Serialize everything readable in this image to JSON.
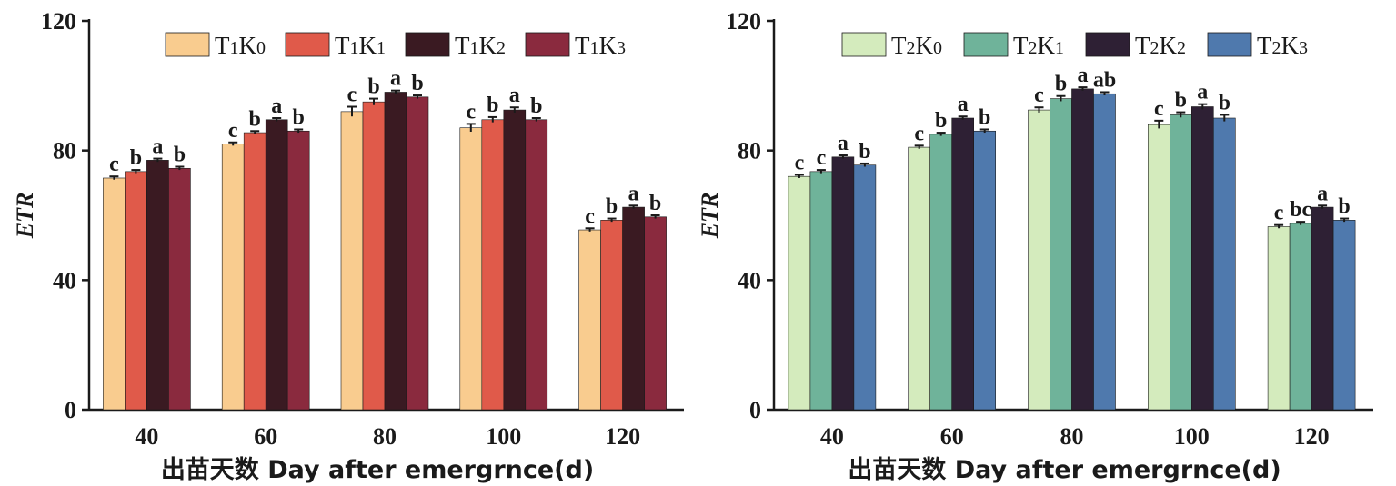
{
  "chart_data": [
    {
      "type": "bar",
      "categories": [
        "40",
        "60",
        "80",
        "100",
        "120"
      ],
      "ylabel": "ETR",
      "xlabel": "出苗天数 Day after emergrnce(d)",
      "ylim": [
        0,
        120
      ],
      "yticks": [
        "0",
        "40",
        "80",
        "120"
      ],
      "legend_position": "top",
      "series": [
        {
          "name": "T1K0",
          "color": "#f9cc8f",
          "values": [
            71.5,
            82,
            92,
            87,
            55.5
          ],
          "errors": [
            0.5,
            0.5,
            1.5,
            1.2,
            0.5
          ],
          "labels": [
            "c",
            "c",
            "c",
            "c",
            "c"
          ]
        },
        {
          "name": "T1K1",
          "color": "#e05a4a",
          "values": [
            73.5,
            85.5,
            95,
            89.5,
            58.5
          ],
          "errors": [
            0.5,
            0.5,
            1,
            0.8,
            0.5
          ],
          "labels": [
            "b",
            "b",
            "b",
            "b",
            "b"
          ]
        },
        {
          "name": "T1K2",
          "color": "#3a1a22",
          "values": [
            77,
            89.5,
            98,
            92.5,
            62.5
          ],
          "errors": [
            0.5,
            0.5,
            0.5,
            0.8,
            0.5
          ],
          "labels": [
            "a",
            "a",
            "a",
            "a",
            "a"
          ]
        },
        {
          "name": "T1K3",
          "color": "#8a2a3e",
          "values": [
            74.5,
            86,
            96.5,
            89.5,
            59.5
          ],
          "errors": [
            0.5,
            0.5,
            0.5,
            0.5,
            0.5
          ],
          "labels": [
            "b",
            "b",
            "b",
            "b",
            "b"
          ]
        }
      ]
    },
    {
      "type": "bar",
      "categories": [
        "40",
        "60",
        "80",
        "100",
        "120"
      ],
      "ylabel": "ETR",
      "xlabel": "出苗天数 Day after emergrnce(d)",
      "ylim": [
        0,
        120
      ],
      "yticks": [
        "0",
        "40",
        "80",
        "120"
      ],
      "legend_position": "top",
      "series": [
        {
          "name": "T2K0",
          "color": "#d4ebbd",
          "values": [
            72,
            81,
            92.5,
            88,
            56.5
          ],
          "errors": [
            0.5,
            0.5,
            0.8,
            1.2,
            0.5
          ],
          "labels": [
            "c",
            "c",
            "c",
            "c",
            "c"
          ]
        },
        {
          "name": "T2K1",
          "color": "#6fb39a",
          "values": [
            73.5,
            85,
            96,
            91,
            57.5
          ],
          "errors": [
            0.5,
            0.5,
            0.8,
            0.8,
            0.5
          ],
          "labels": [
            "c",
            "b",
            "b",
            "b",
            "bc"
          ]
        },
        {
          "name": "T2K2",
          "color": "#2e2034",
          "values": [
            78,
            90,
            99,
            93.5,
            62.5
          ],
          "errors": [
            0.5,
            0.5,
            0.5,
            0.8,
            0.5
          ],
          "labels": [
            "a",
            "a",
            "a",
            "a",
            "a"
          ]
        },
        {
          "name": "T2K3",
          "color": "#4f79ad",
          "values": [
            75.5,
            86,
            97.5,
            90,
            58.5
          ],
          "errors": [
            0.5,
            0.5,
            0.5,
            1,
            0.5
          ],
          "labels": [
            "b",
            "b",
            "ab",
            "b",
            "b"
          ]
        }
      ]
    }
  ]
}
